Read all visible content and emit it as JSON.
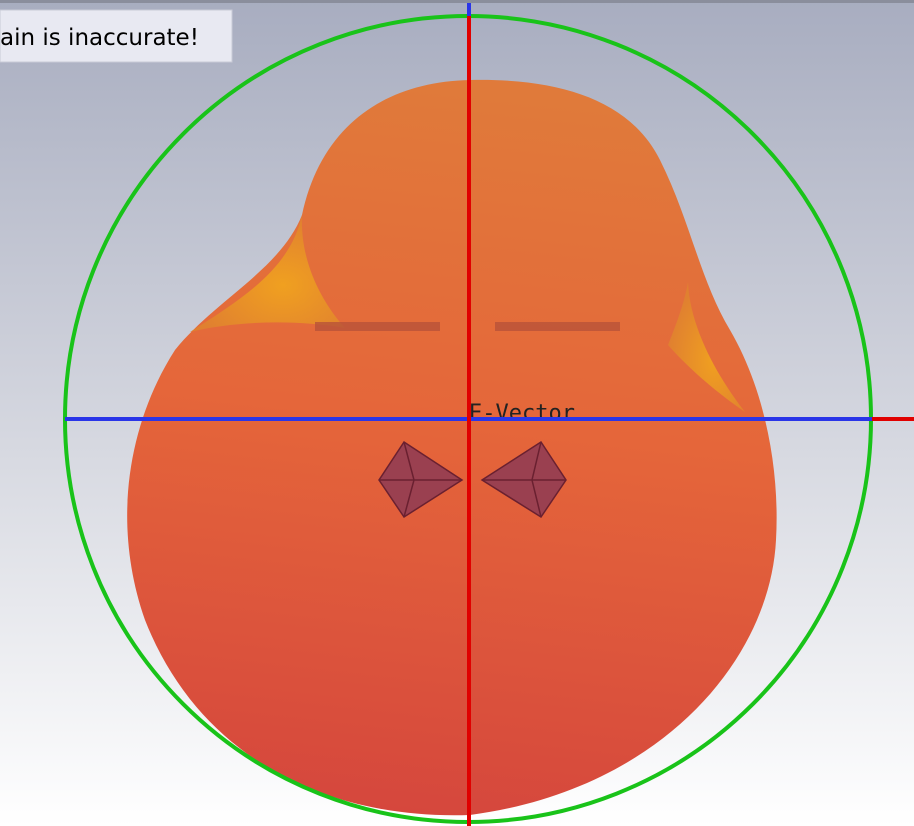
{
  "warning": {
    "text": "ain is inaccurate!"
  },
  "viewport": {
    "label": "E-Vector"
  }
}
